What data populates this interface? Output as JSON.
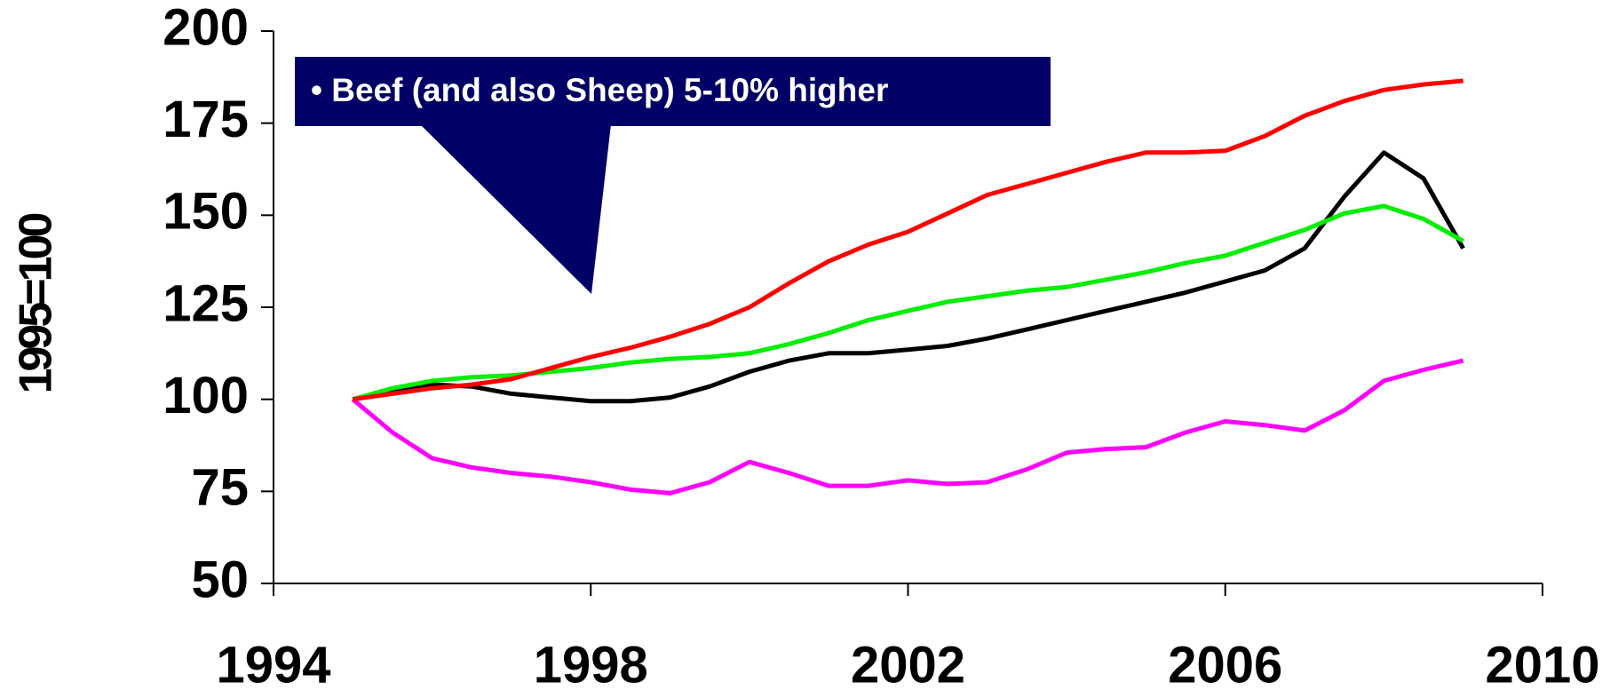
{
  "chart_data": {
    "type": "line",
    "y_label": "1995=100",
    "annotation": "• Beef  (and also Sheep) 5-10% higher",
    "x": [
      1995,
      1995.5,
      1996,
      1996.5,
      1997,
      1997.5,
      1998,
      1998.5,
      1999,
      1999.5,
      2000,
      2000.5,
      2001,
      2001.5,
      2002,
      2002.5,
      2003,
      2003.5,
      2004,
      2004.5,
      2005,
      2005.5,
      2006,
      2006.5,
      2007,
      2007.5,
      2008,
      2008.5,
      2009
    ],
    "series": [
      {
        "color": "#ff0000",
        "values": [
          100,
          101.5,
          103,
          104,
          105.5,
          108.5,
          111.5,
          114,
          117,
          120.5,
          125,
          131.5,
          137.5,
          142,
          145.5,
          150.5,
          155.5,
          158.5,
          161.5,
          164.5,
          167,
          167,
          167.5,
          171.5,
          177,
          181,
          184,
          185.5,
          186.5
        ]
      },
      {
        "color": "#00ee00",
        "values": [
          100,
          103,
          105,
          106,
          106.5,
          107.5,
          108.5,
          110,
          111,
          111.5,
          112.5,
          115,
          118,
          121.5,
          124,
          126.5,
          128,
          129.5,
          130.5,
          132.5,
          134.5,
          137,
          139,
          142.5,
          146,
          150.5,
          152.5,
          149,
          143
        ]
      },
      {
        "color": "#000000",
        "values": [
          100,
          102.5,
          104,
          103.5,
          101.5,
          100.5,
          99.5,
          99.5,
          100.5,
          103.5,
          107.5,
          110.5,
          112.5,
          112.5,
          113.5,
          114.5,
          116.5,
          119,
          121.5,
          124,
          126.5,
          129,
          132,
          135,
          141,
          155,
          167,
          160,
          141
        ]
      },
      {
        "color": "#ff00ff",
        "values": [
          100,
          91,
          84,
          81.5,
          80,
          79,
          77.5,
          75.5,
          74.5,
          77.5,
          83,
          80,
          76.5,
          76.5,
          78,
          77,
          77.5,
          81,
          85.5,
          86.5,
          87,
          91,
          94,
          93,
          91.5,
          97,
          105,
          108,
          110.5
        ]
      }
    ],
    "xlim": [
      1994,
      2010
    ],
    "xticks": [
      1994,
      1998,
      2002,
      2006,
      2010
    ],
    "ylim": [
      50,
      200
    ],
    "yticks": [
      50,
      75,
      100,
      125,
      150,
      175,
      200
    ],
    "grid": false
  }
}
